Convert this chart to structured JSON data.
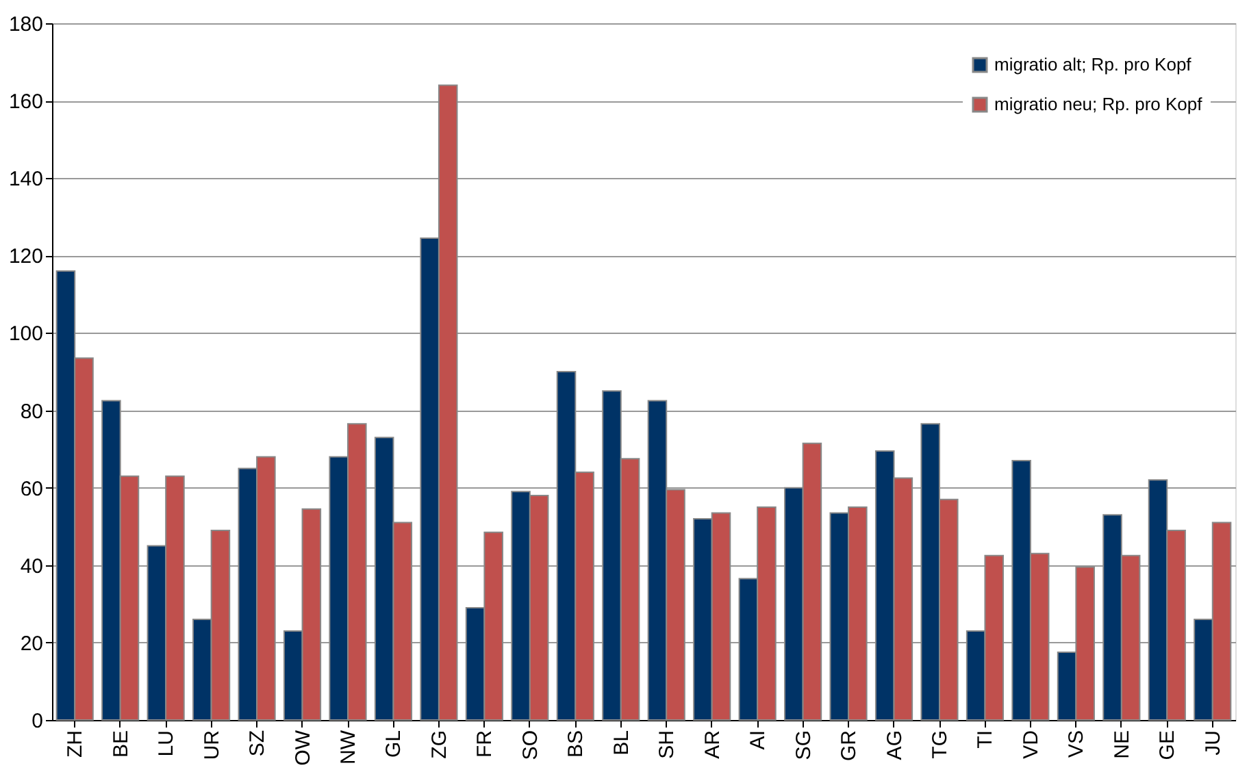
{
  "chart_data": {
    "type": "bar",
    "categories": [
      "ZH",
      "BE",
      "LU",
      "UR",
      "SZ",
      "OW",
      "NW",
      "GL",
      "ZG",
      "FR",
      "SO",
      "BS",
      "BL",
      "SH",
      "AR",
      "AI",
      "SG",
      "GR",
      "AG",
      "TG",
      "TI",
      "VD",
      "VS",
      "NE",
      "GE",
      "JU"
    ],
    "series": [
      {
        "name": "migratio alt; Rp. pro Kopf",
        "color": "#003366",
        "values": [
          116,
          82.5,
          45,
          26,
          65,
          23,
          68,
          73,
          124.5,
          29,
          59,
          90,
          85,
          82.5,
          52,
          36.5,
          60,
          53.5,
          69.5,
          76.5,
          23,
          67,
          17.5,
          53,
          62,
          26
        ]
      },
      {
        "name": "migratio neu; Rp. pro Kopf",
        "color": "#c0504d",
        "values": [
          93.5,
          63,
          63,
          49,
          68,
          54.5,
          76.5,
          51,
          164,
          48.5,
          58,
          64,
          67.5,
          59.5,
          53.5,
          55,
          71.5,
          55,
          62.5,
          57,
          42.5,
          43,
          39.5,
          42.5,
          49,
          51
        ]
      }
    ],
    "ylim": [
      0,
      180
    ],
    "yticks": [
      0,
      20,
      40,
      60,
      80,
      100,
      120,
      140,
      160,
      180
    ],
    "grid": "y",
    "legend": "top right"
  }
}
